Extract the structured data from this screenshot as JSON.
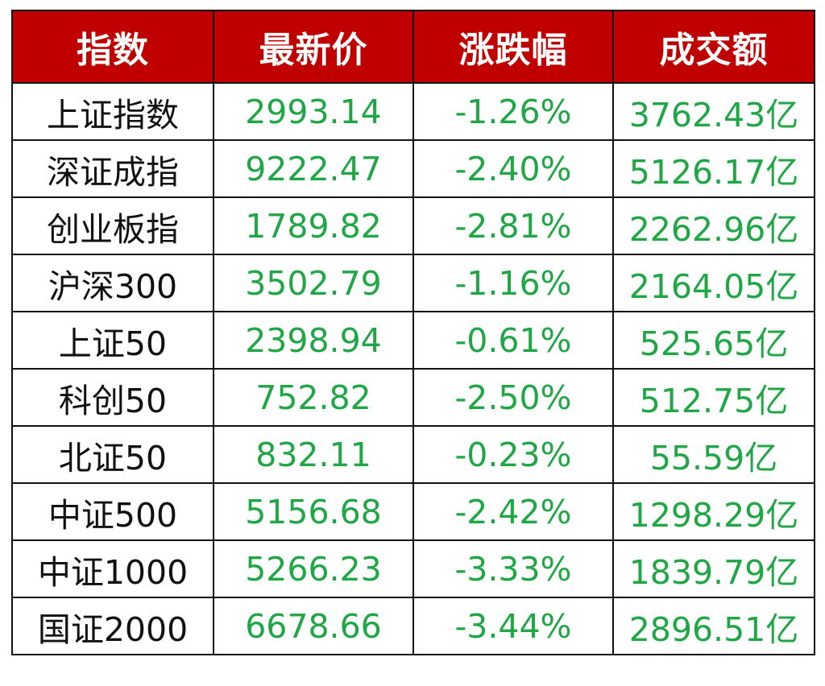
{
  "table": {
    "headers": [
      "指数",
      "最新价",
      "涨跌幅",
      "成交额"
    ],
    "rows": [
      {
        "name": "上证指数",
        "price": "2993.14",
        "change": "-1.26%",
        "volume": "3762.43亿"
      },
      {
        "name": "深证成指",
        "price": "9222.47",
        "change": "-2.40%",
        "volume": "5126.17亿"
      },
      {
        "name": "创业板指",
        "price": "1789.82",
        "change": "-2.81%",
        "volume": "2262.96亿"
      },
      {
        "name": "沪深300",
        "price": "3502.79",
        "change": "-1.16%",
        "volume": "2164.05亿"
      },
      {
        "name": "上证50",
        "price": "2398.94",
        "change": "-0.61%",
        "volume": "525.65亿"
      },
      {
        "name": "科创50",
        "price": "752.82",
        "change": "-2.50%",
        "volume": "512.75亿"
      },
      {
        "name": "北证50",
        "price": "832.11",
        "change": "-0.23%",
        "volume": "55.59亿"
      },
      {
        "name": "中证500",
        "price": "5156.68",
        "change": "-2.42%",
        "volume": "1298.29亿"
      },
      {
        "name": "中证1000",
        "price": "5266.23",
        "change": "-3.33%",
        "volume": "1839.79亿"
      },
      {
        "name": "国证2000",
        "price": "6678.66",
        "change": "-3.44%",
        "volume": "2896.51亿"
      }
    ]
  },
  "colors": {
    "header_bg": "#c00000",
    "header_text": "#ffffff",
    "name_text": "#111111",
    "value_text": "#1fa745",
    "border": "#111111"
  }
}
